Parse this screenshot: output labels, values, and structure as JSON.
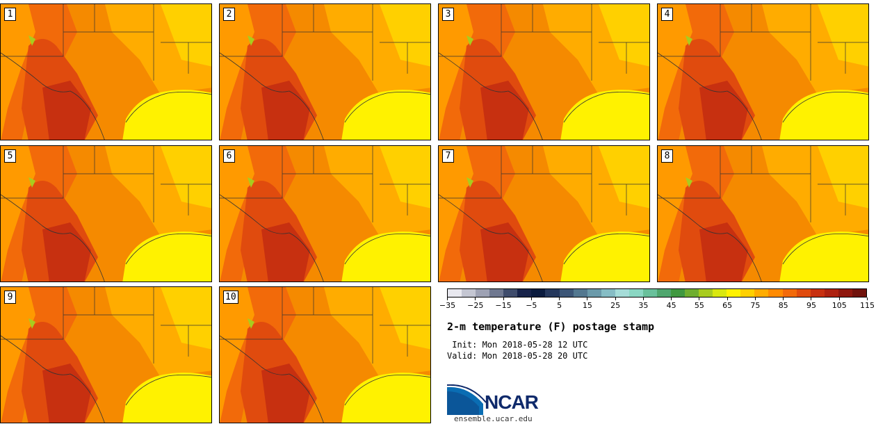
{
  "members": [
    "1",
    "2",
    "3",
    "4",
    "5",
    "6",
    "7",
    "8",
    "9",
    "10"
  ],
  "colorbar": {
    "colors": [
      "#e8e8ef",
      "#c4c6d2",
      "#9ea2b4",
      "#6f7890",
      "#3f4c6c",
      "#17234a",
      "#0a1b3e",
      "#24375c",
      "#3c5677",
      "#537890",
      "#6b9aaa",
      "#86bdc5",
      "#a5dcd8",
      "#8ad7c3",
      "#69c09b",
      "#4fa66e",
      "#3f9840",
      "#6fae2f",
      "#a8cc1f",
      "#d9e80f",
      "#fff200",
      "#ffd000",
      "#ffac00",
      "#ff8a00",
      "#f26a0a",
      "#e04b0e",
      "#c73010",
      "#ad2110",
      "#8f170e",
      "#70120c"
    ],
    "tick_labels": [
      "−35",
      "−25",
      "−15",
      "−5",
      "5",
      "15",
      "25",
      "35",
      "45",
      "55",
      "65",
      "75",
      "85",
      "95",
      "105",
      "115"
    ],
    "range": [
      -40,
      120
    ]
  },
  "title": "2-m temperature (F) postage stamp",
  "init": " Init: Mon 2018-05-28 12 UTC",
  "valid": "Valid: Mon 2018-05-28 20 UTC",
  "logo_text": "NCAR",
  "url": "ensemble.ucar.edu"
}
